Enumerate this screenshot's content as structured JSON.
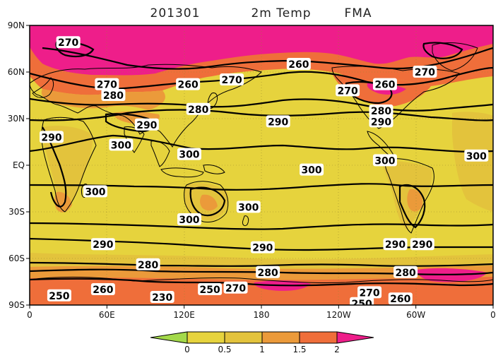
{
  "figure": {
    "title_parts": [
      "201301",
      "2m Temp",
      "FMA"
    ],
    "colors": {
      "background": "#e6d33d",
      "band_low": "#e3c33c",
      "band_mid": "#eb9a3a",
      "band_high": "#ef6e3a",
      "band_max": "#ee1e8a",
      "colorbar_low": "#a3d94a",
      "contour": "#000000"
    }
  },
  "map": {
    "projection": "cylindrical-equidistant",
    "lon_ticks": [
      "0",
      "60E",
      "120E",
      "180",
      "120W",
      "60W",
      "0"
    ],
    "lat_ticks": [
      "90N",
      "60N",
      "30N",
      "EQ",
      "30S",
      "60S",
      "90S"
    ],
    "contour_labels": [
      {
        "text": "270",
        "lon": 30,
        "lat": 79
      },
      {
        "text": "270",
        "lon": 60,
        "lat": 52
      },
      {
        "text": "280",
        "lon": 65,
        "lat": 45
      },
      {
        "text": "260",
        "lon": 123,
        "lat": 52
      },
      {
        "text": "270",
        "lon": 157,
        "lat": 55
      },
      {
        "text": "260",
        "lon": 209,
        "lat": 65
      },
      {
        "text": "270",
        "lon": 247,
        "lat": 48
      },
      {
        "text": "260",
        "lon": 276,
        "lat": 52
      },
      {
        "text": "270",
        "lon": 307,
        "lat": 60
      },
      {
        "text": "280",
        "lon": 131,
        "lat": 36
      },
      {
        "text": "280",
        "lon": 273,
        "lat": 35
      },
      {
        "text": "290",
        "lon": 193,
        "lat": 28
      },
      {
        "text": "290",
        "lon": 273,
        "lat": 28
      },
      {
        "text": "290",
        "lon": 91,
        "lat": 26
      },
      {
        "text": "290",
        "lon": 17,
        "lat": 18
      },
      {
        "text": "300",
        "lon": 71,
        "lat": 13
      },
      {
        "text": "300",
        "lon": 124,
        "lat": 7
      },
      {
        "text": "300",
        "lon": 219,
        "lat": -3
      },
      {
        "text": "300",
        "lon": 276,
        "lat": 3
      },
      {
        "text": "300",
        "lon": 347,
        "lat": 6
      },
      {
        "text": "300",
        "lon": 51,
        "lat": -17
      },
      {
        "text": "300",
        "lon": 170,
        "lat": -27
      },
      {
        "text": "300",
        "lon": 124,
        "lat": -35
      },
      {
        "text": "290",
        "lon": 57,
        "lat": -51
      },
      {
        "text": "290",
        "lon": 181,
        "lat": -53
      },
      {
        "text": "290",
        "lon": 284,
        "lat": -51
      },
      {
        "text": "290",
        "lon": 305,
        "lat": -51
      },
      {
        "text": "280",
        "lon": 92,
        "lat": -64
      },
      {
        "text": "280",
        "lon": 185,
        "lat": -69
      },
      {
        "text": "280",
        "lon": 292,
        "lat": -69
      },
      {
        "text": "250",
        "lon": 23,
        "lat": -84
      },
      {
        "text": "260",
        "lon": 57,
        "lat": -80
      },
      {
        "text": "230",
        "lon": 103,
        "lat": -85
      },
      {
        "text": "250",
        "lon": 140,
        "lat": -80
      },
      {
        "text": "270",
        "lon": 160,
        "lat": -79
      },
      {
        "text": "270",
        "lon": 264,
        "lat": -82
      },
      {
        "text": "250",
        "lon": 258,
        "lat": -89
      },
      {
        "text": "260",
        "lon": 288,
        "lat": -86
      }
    ]
  },
  "colorbar": {
    "levels": [
      "0",
      "0.5",
      "1",
      "1.5",
      "2"
    ],
    "colors": [
      "#a3d94a",
      "#e6d33d",
      "#e3c33c",
      "#eb9a3a",
      "#ef6e3a",
      "#ee1e8a"
    ]
  }
}
